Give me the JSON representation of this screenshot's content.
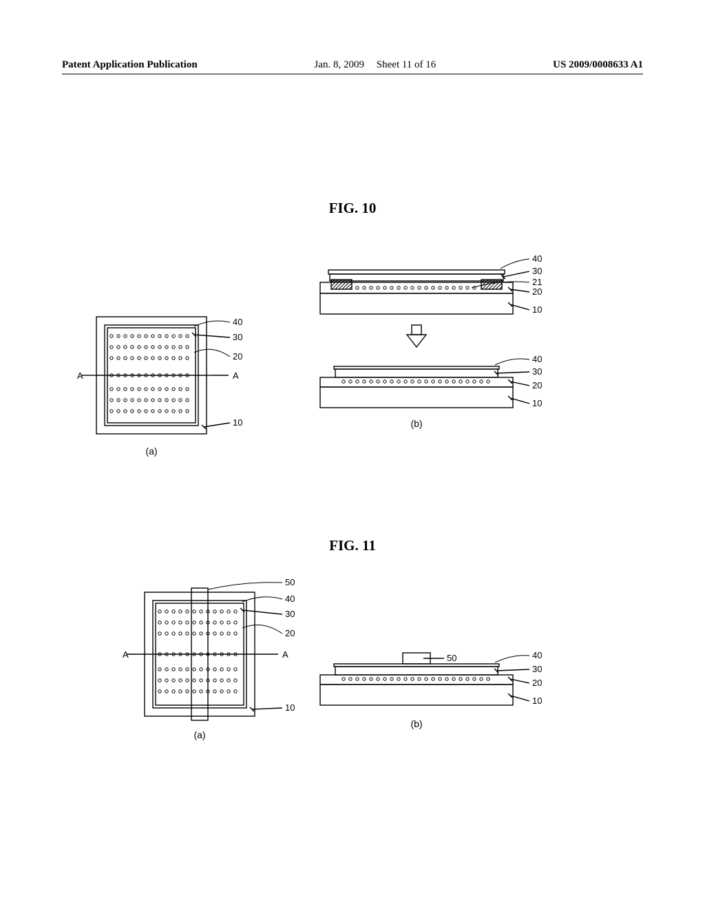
{
  "header": {
    "left": "Patent Application Publication",
    "date": "Jan. 8, 2009",
    "sheet": "Sheet 11 of 16",
    "right": "US 2009/0008633 A1"
  },
  "fig10": {
    "title": "FIG. 10",
    "panel_a": {
      "caption": "(a)",
      "section_label": "A",
      "leaders": [
        "40",
        "30",
        "20",
        "10"
      ]
    },
    "panel_b": {
      "caption": "(b)",
      "top": {
        "leaders": [
          "40",
          "30",
          "21",
          "20",
          "10"
        ]
      },
      "bottom": {
        "leaders": [
          "40",
          "30",
          "20",
          "10"
        ]
      }
    }
  },
  "fig11": {
    "title": "FIG. 11",
    "panel_a": {
      "caption": "(a)",
      "section_label": "A",
      "leaders": [
        "50",
        "40",
        "30",
        "20",
        "10"
      ]
    },
    "panel_b": {
      "caption": "(b)",
      "leaders": [
        "50",
        "40",
        "30",
        "20",
        "10"
      ]
    }
  },
  "style": {
    "stroke": "#000000",
    "stroke_width": 1.4,
    "text_color": "#000000",
    "fontsize_label": 13,
    "fontsize_caption": 14,
    "dot_radius": 2.2,
    "dot_spacing": 10,
    "hatch_spacing": 5
  }
}
